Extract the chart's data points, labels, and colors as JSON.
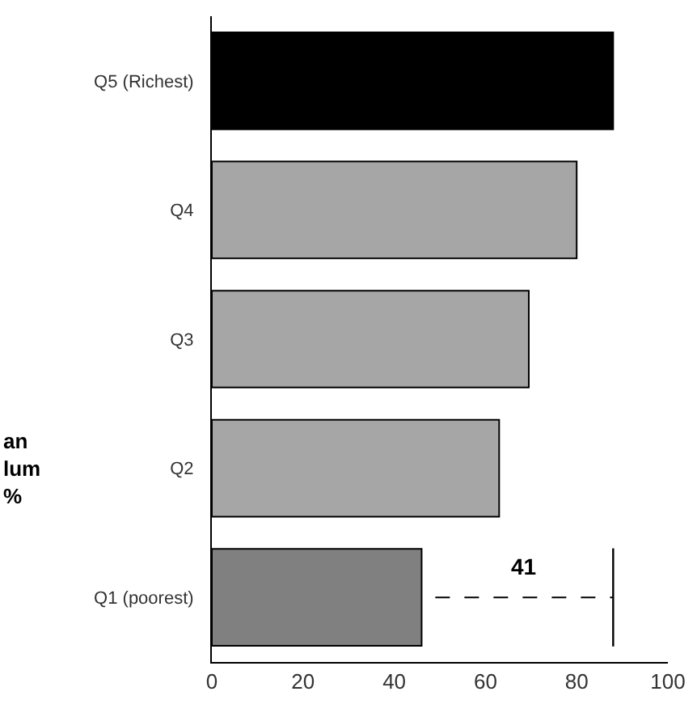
{
  "chart_data": {
    "type": "bar",
    "orientation": "horizontal",
    "ylabel": "an\nlum\n%",
    "categories": [
      "Q5 (Richest)",
      "Q4",
      "Q3",
      "Q2",
      "Q1 (poorest)"
    ],
    "values": [
      88,
      80,
      69.5,
      63,
      46
    ],
    "colors": [
      "#000000",
      "#a6a6a6",
      "#a6a6a6",
      "#a6a6a6",
      "#808080"
    ],
    "xlim": [
      0,
      100
    ],
    "xticks": [
      0,
      20,
      40,
      60,
      80,
      100
    ],
    "grid": false,
    "legend": false,
    "annotations": [
      "41"
    ]
  }
}
